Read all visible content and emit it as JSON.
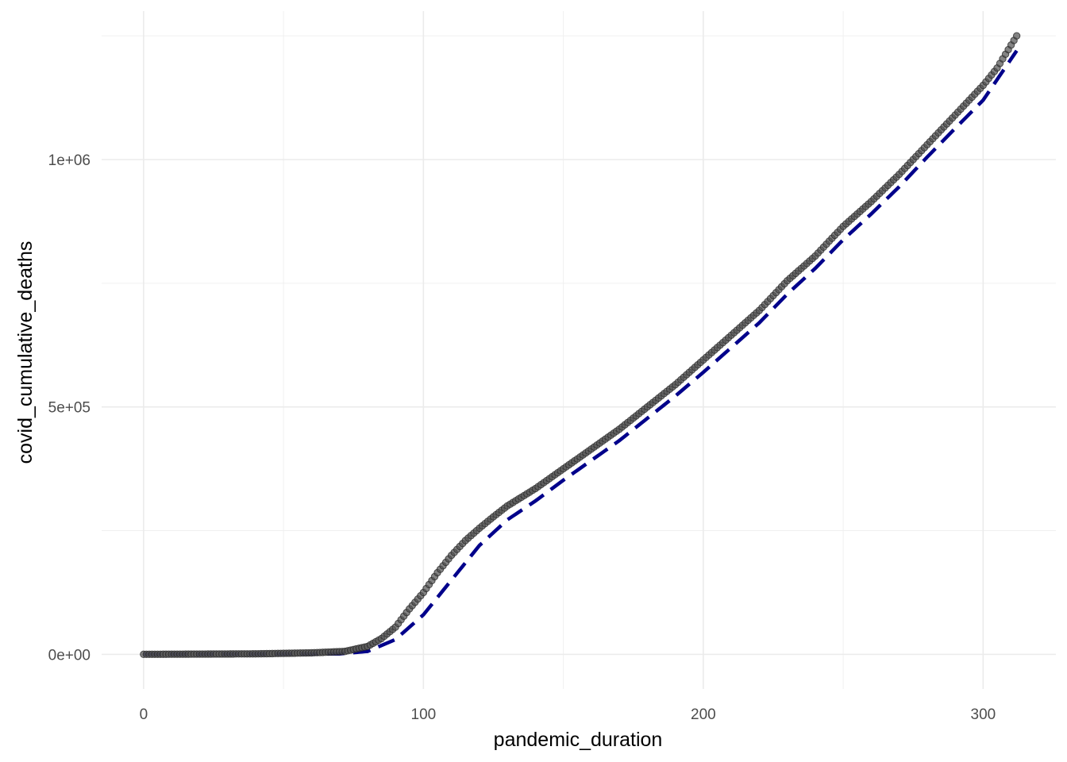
{
  "chart_data": {
    "type": "scatter",
    "title": "",
    "xlabel": "pandemic_duration",
    "ylabel": "covid_cumulative_deaths",
    "xlim": [
      -15,
      326
    ],
    "ylim": [
      -70000,
      1300000
    ],
    "x_ticks": [
      {
        "value": 0,
        "label": "0"
      },
      {
        "value": 100,
        "label": "100"
      },
      {
        "value": 200,
        "label": "200"
      },
      {
        "value": 300,
        "label": "300"
      }
    ],
    "x_minor_ticks": [
      50,
      150,
      250
    ],
    "y_ticks": [
      {
        "value": 0,
        "label": "0e+00"
      },
      {
        "value": 500000,
        "label": "5e+05"
      },
      {
        "value": 1000000,
        "label": "1e+06"
      }
    ],
    "y_minor_ticks": [
      250000,
      750000,
      1250000
    ],
    "grid": true,
    "legend": "none",
    "points_color": "#505050",
    "points_alpha": 0.7,
    "fit_line_color": "#00008b",
    "fit_line_style": "dashed",
    "series": [
      {
        "kind": "points",
        "x_start": 0,
        "x_end": 312,
        "x_step": 1,
        "anchors": [
          [
            0,
            0
          ],
          [
            40,
            1000
          ],
          [
            60,
            3000
          ],
          [
            72,
            6000
          ],
          [
            80,
            16000
          ],
          [
            85,
            32000
          ],
          [
            90,
            55000
          ],
          [
            95,
            92000
          ],
          [
            100,
            125000
          ],
          [
            105,
            165000
          ],
          [
            110,
            200000
          ],
          [
            115,
            230000
          ],
          [
            120,
            255000
          ],
          [
            125,
            278000
          ],
          [
            130,
            300000
          ],
          [
            140,
            335000
          ],
          [
            150,
            375000
          ],
          [
            160,
            415000
          ],
          [
            170,
            455000
          ],
          [
            180,
            500000
          ],
          [
            190,
            545000
          ],
          [
            200,
            595000
          ],
          [
            210,
            645000
          ],
          [
            220,
            695000
          ],
          [
            230,
            755000
          ],
          [
            240,
            805000
          ],
          [
            250,
            865000
          ],
          [
            260,
            915000
          ],
          [
            270,
            970000
          ],
          [
            280,
            1030000
          ],
          [
            290,
            1090000
          ],
          [
            300,
            1150000
          ],
          [
            305,
            1185000
          ],
          [
            312,
            1250000
          ]
        ]
      },
      {
        "kind": "fit-line",
        "x_start": 0,
        "x_end": 312,
        "anchors": [
          [
            0,
            0
          ],
          [
            70,
            1000
          ],
          [
            80,
            6000
          ],
          [
            90,
            30000
          ],
          [
            100,
            80000
          ],
          [
            110,
            150000
          ],
          [
            120,
            220000
          ],
          [
            130,
            272000
          ],
          [
            140,
            310000
          ],
          [
            150,
            352000
          ],
          [
            160,
            392000
          ],
          [
            170,
            432000
          ],
          [
            180,
            477000
          ],
          [
            190,
            522000
          ],
          [
            200,
            570000
          ],
          [
            210,
            620000
          ],
          [
            220,
            670000
          ],
          [
            230,
            728000
          ],
          [
            240,
            780000
          ],
          [
            250,
            838000
          ],
          [
            260,
            890000
          ],
          [
            270,
            945000
          ],
          [
            280,
            1005000
          ],
          [
            290,
            1063000
          ],
          [
            300,
            1120000
          ],
          [
            312,
            1220000
          ]
        ]
      }
    ]
  }
}
